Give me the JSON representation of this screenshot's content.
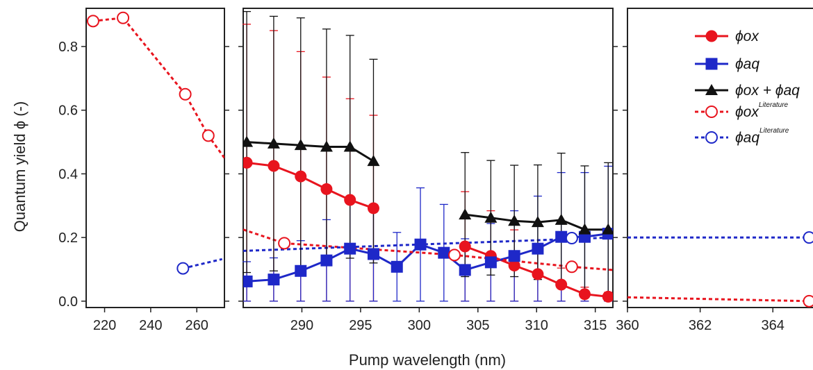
{
  "chart_data": {
    "type": "scatter",
    "xlabel": "Pump wavelength (nm)",
    "ylabel": "Quantum yield ϕ (-)",
    "ylim": [
      -0.02,
      0.92
    ],
    "yticks": [
      "0.0",
      "0.2",
      "0.4",
      "0.6",
      "0.8"
    ],
    "panels": [
      {
        "xlim": [
          212,
          272
        ],
        "xticks": [
          220,
          240,
          260
        ]
      },
      {
        "xlim": [
          285,
          316.5
        ],
        "xticks": [
          290,
          295,
          300,
          305,
          310,
          315
        ]
      },
      {
        "xlim": [
          360,
          365.2
        ],
        "xticks": [
          360,
          362,
          364
        ]
      }
    ],
    "series": [
      {
        "name": "ϕox",
        "color": "#e8141e",
        "marker": "circle",
        "line": "solid",
        "points": [
          [
            285.3,
            0.435,
            0.435
          ],
          [
            287.6,
            0.425,
            0.425
          ],
          [
            289.9,
            0.392,
            0.392
          ],
          [
            292.1,
            0.352,
            0.352
          ],
          [
            294.1,
            0.318,
            0.318
          ],
          [
            296.1,
            0.292,
            0.292
          ],
          [
            303.9,
            0.172,
            0.172
          ],
          [
            306.1,
            0.142,
            0.142
          ],
          [
            308.1,
            0.112,
            0.112
          ],
          [
            310.1,
            0.085,
            0.085
          ],
          [
            312.1,
            0.052,
            0.052
          ],
          [
            314.1,
            0.022,
            0.022
          ],
          [
            316.1,
            0.014,
            0.014
          ]
        ]
      },
      {
        "name": "ϕaq",
        "color": "#1e28c8",
        "marker": "square",
        "line": "solid",
        "points": [
          [
            285.3,
            0.062,
            0.062
          ],
          [
            287.6,
            0.068,
            0.068
          ],
          [
            289.9,
            0.095,
            0.095
          ],
          [
            292.1,
            0.128,
            0.128
          ],
          [
            294.1,
            0.165,
            0.165
          ],
          [
            296.1,
            0.148,
            0.148
          ],
          [
            298.1,
            0.108,
            0.108
          ],
          [
            300.1,
            0.178,
            0.178
          ],
          [
            302.1,
            0.152,
            0.152
          ],
          [
            303.9,
            0.098,
            0.098
          ],
          [
            306.1,
            0.122,
            0.122
          ],
          [
            308.1,
            0.142,
            0.142
          ],
          [
            310.1,
            0.165,
            0.165
          ],
          [
            312.1,
            0.202,
            0.202
          ],
          [
            314.1,
            0.202,
            0.202
          ],
          [
            316.1,
            0.212,
            0.212
          ]
        ]
      },
      {
        "name": "ϕox + ϕaq",
        "color": "#111111",
        "marker": "triangle",
        "line": "solid",
        "points": [
          [
            285.3,
            0.5,
            0.41
          ],
          [
            287.6,
            0.495,
            0.4
          ],
          [
            289.9,
            0.49,
            0.4
          ],
          [
            292.1,
            0.485,
            0.37
          ],
          [
            294.1,
            0.485,
            0.35
          ],
          [
            296.1,
            0.44,
            0.32
          ],
          [
            303.9,
            0.272,
            0.195
          ],
          [
            306.1,
            0.262,
            0.18
          ],
          [
            308.1,
            0.252,
            0.175
          ],
          [
            310.1,
            0.248,
            0.18
          ],
          [
            312.1,
            0.255,
            0.21
          ],
          [
            314.1,
            0.225,
            0.2
          ],
          [
            316.1,
            0.225,
            0.21
          ]
        ]
      },
      {
        "name": "ϕox",
        "legend_sup": "Literature",
        "color": "#e8141e",
        "marker": "open-circle",
        "line": "dashed",
        "points": [
          [
            215,
            0.88
          ],
          [
            228,
            0.89
          ],
          [
            255,
            0.65
          ],
          [
            265,
            0.52
          ],
          [
            288.5,
            0.182
          ],
          [
            303,
            0.145
          ],
          [
            313,
            0.108
          ],
          [
            365,
            0.0
          ]
        ],
        "lines": [
          [
            [
              215,
              0.88
            ],
            [
              228,
              0.89
            ],
            [
              255,
              0.65
            ],
            [
              265,
              0.52
            ],
            [
              272,
              0.45
            ]
          ],
          [
            [
              285,
              0.225
            ],
            [
              288.5,
              0.182
            ],
            [
              303,
              0.145
            ],
            [
              313,
              0.108
            ],
            [
              316.5,
              0.098
            ]
          ],
          [
            [
              360,
              0.012
            ],
            [
              365,
              0.0
            ]
          ]
        ]
      },
      {
        "name": "ϕaq",
        "legend_sup": "Literature",
        "color": "#1e28c8",
        "marker": "open-circle",
        "line": "dashed",
        "points": [
          [
            254,
            0.103
          ],
          [
            313,
            0.198
          ],
          [
            365,
            0.2
          ]
        ],
        "lines": [
          [
            [
              254,
              0.103
            ],
            [
              271,
              0.132
            ]
          ],
          [
            [
              285,
              0.158
            ],
            [
              316.5,
              0.2
            ]
          ],
          [
            [
              360,
              0.2
            ],
            [
              365,
              0.2
            ]
          ]
        ]
      }
    ]
  }
}
